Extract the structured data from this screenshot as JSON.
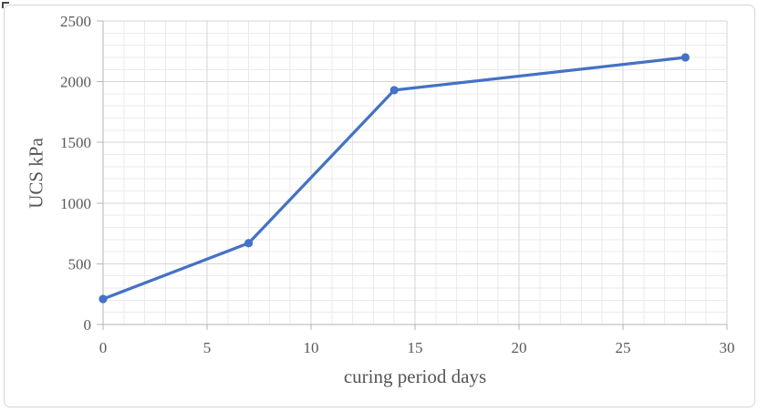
{
  "chart_data": {
    "type": "line",
    "series": [
      {
        "name": "UCS",
        "x": [
          0,
          7,
          14,
          28
        ],
        "y": [
          210,
          670,
          1930,
          2200
        ]
      }
    ],
    "title": "",
    "xlabel": "curing period days",
    "ylabel": "UCS kPa",
    "xlim": [
      0,
      30
    ],
    "ylim": [
      0,
      2500
    ],
    "x_ticks": [
      0,
      5,
      10,
      15,
      20,
      25,
      30
    ],
    "y_ticks": [
      0,
      500,
      1000,
      1500,
      2000,
      2500
    ],
    "x_minor_step": 1,
    "y_minor_step": 100,
    "grid": "major-and-minor",
    "legend": "none",
    "marker": "circle",
    "colors": {
      "series": "#4472C4",
      "grid_major": "#d6d6d6",
      "grid_minor": "#ebebeb",
      "axis_line": "#b4b4b4",
      "tick_label": "#595959",
      "axis_title": "#555555"
    }
  }
}
